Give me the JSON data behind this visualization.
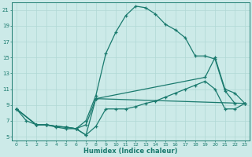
{
  "xlabel": "Humidex (Indice chaleur)",
  "background_color": "#cceae8",
  "grid_color": "#b0d8d5",
  "line_color": "#1a7a6e",
  "xlim": [
    -0.5,
    23.5
  ],
  "ylim": [
    4.5,
    22
  ],
  "xticks": [
    0,
    1,
    2,
    3,
    4,
    5,
    6,
    7,
    8,
    9,
    10,
    11,
    12,
    13,
    14,
    15,
    16,
    17,
    18,
    19,
    20,
    21,
    22,
    23
  ],
  "yticks": [
    5,
    7,
    9,
    11,
    13,
    15,
    17,
    19,
    21
  ],
  "series_arch": [
    [
      0,
      8.5
    ],
    [
      2,
      6.5
    ],
    [
      3,
      6.5
    ],
    [
      4,
      6.3
    ],
    [
      5,
      6.2
    ],
    [
      6,
      6.0
    ],
    [
      7,
      7.0
    ],
    [
      8,
      10.2
    ],
    [
      9,
      15.5
    ],
    [
      10,
      18.2
    ],
    [
      11,
      20.3
    ],
    [
      12,
      21.5
    ],
    [
      13,
      21.3
    ],
    [
      14,
      20.5
    ],
    [
      15,
      19.2
    ],
    [
      16,
      18.5
    ],
    [
      17,
      17.5
    ],
    [
      18,
      15.2
    ],
    [
      19,
      15.2
    ],
    [
      20,
      14.8
    ],
    [
      21,
      10.8
    ],
    [
      22,
      9.2
    ]
  ],
  "series_mid_high": [
    [
      0,
      8.5
    ],
    [
      2,
      6.5
    ],
    [
      3,
      6.5
    ],
    [
      4,
      6.3
    ],
    [
      5,
      6.2
    ],
    [
      6,
      6.0
    ],
    [
      7,
      6.5
    ],
    [
      8,
      9.8
    ],
    [
      19,
      12.5
    ],
    [
      20,
      15.0
    ],
    [
      21,
      11.0
    ],
    [
      22,
      10.5
    ],
    [
      23,
      9.2
    ]
  ],
  "series_mid_low": [
    [
      0,
      8.5
    ],
    [
      2,
      6.5
    ],
    [
      3,
      6.5
    ],
    [
      4,
      6.3
    ],
    [
      5,
      6.2
    ],
    [
      6,
      6.0
    ],
    [
      7,
      5.2
    ],
    [
      8,
      9.8
    ],
    [
      23,
      9.2
    ]
  ],
  "series_flat": [
    [
      0,
      8.5
    ],
    [
      1,
      7.0
    ],
    [
      2,
      6.5
    ],
    [
      3,
      6.5
    ],
    [
      4,
      6.2
    ],
    [
      5,
      6.0
    ],
    [
      6,
      6.0
    ],
    [
      7,
      5.2
    ],
    [
      8,
      6.3
    ],
    [
      9,
      8.5
    ],
    [
      10,
      8.5
    ],
    [
      11,
      8.5
    ],
    [
      12,
      8.8
    ],
    [
      13,
      9.2
    ],
    [
      14,
      9.5
    ],
    [
      15,
      10.0
    ],
    [
      16,
      10.5
    ],
    [
      17,
      11.0
    ],
    [
      18,
      11.5
    ],
    [
      19,
      12.0
    ],
    [
      20,
      11.0
    ],
    [
      21,
      8.5
    ],
    [
      22,
      8.5
    ],
    [
      23,
      9.2
    ]
  ]
}
